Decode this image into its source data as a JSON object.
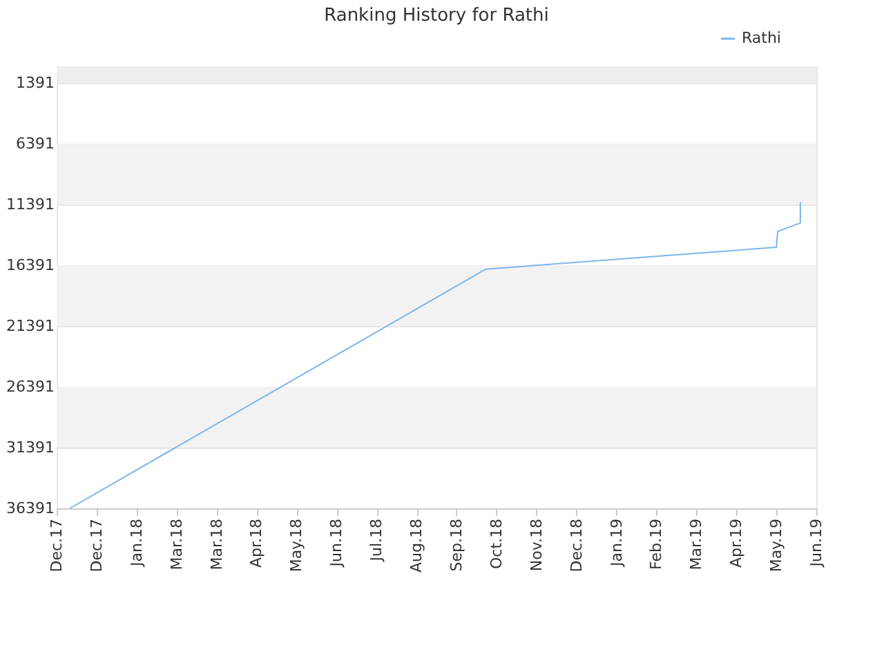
{
  "chart_data": {
    "type": "line",
    "title": "Ranking History for Rathi",
    "x": [
      "2017-12-11",
      "2018-10-19",
      "2019-05-25",
      "2019-05-26",
      "2019-06-12",
      "2019-06-12"
    ],
    "series": [
      {
        "name": "Rathi",
        "color": "#7cb5ec",
        "values": [
          36391,
          16700,
          14900,
          13600,
          12900,
          11200
        ]
      }
    ],
    "xlim": [
      "2017-12-01",
      "2019-06-24"
    ],
    "xticks": [
      {
        "value": "2017-12-01",
        "label": "Dec.17"
      },
      {
        "value": "2017-12-31",
        "label": "Dec.17"
      },
      {
        "value": "2018-01-30",
        "label": "Jan.18"
      },
      {
        "value": "2018-03-01",
        "label": "Mar.18"
      },
      {
        "value": "2018-03-31",
        "label": "Mar.18"
      },
      {
        "value": "2018-04-30",
        "label": "Apr.18"
      },
      {
        "value": "2018-05-30",
        "label": "May.18"
      },
      {
        "value": "2018-06-29",
        "label": "Jun.18"
      },
      {
        "value": "2018-07-29",
        "label": "Jul.18"
      },
      {
        "value": "2018-08-28",
        "label": "Aug.18"
      },
      {
        "value": "2018-09-27",
        "label": "Sep.18"
      },
      {
        "value": "2018-10-27",
        "label": "Oct.18"
      },
      {
        "value": "2018-11-26",
        "label": "Nov.18"
      },
      {
        "value": "2018-12-26",
        "label": "Dec.18"
      },
      {
        "value": "2019-01-25",
        "label": "Jan.19"
      },
      {
        "value": "2019-02-24",
        "label": "Feb.19"
      },
      {
        "value": "2019-03-26",
        "label": "Mar.19"
      },
      {
        "value": "2019-04-25",
        "label": "Apr.19"
      },
      {
        "value": "2019-05-25",
        "label": "May.19"
      },
      {
        "value": "2019-06-24",
        "label": "Jun.19"
      }
    ],
    "ylim": [
      36391,
      1
    ],
    "yticks": [
      1391,
      6391,
      11391,
      16391,
      21391,
      26391,
      31391,
      36391
    ],
    "bands": [
      {
        "axis": "y",
        "from": 1,
        "to": 1391,
        "color": "#eeeeee"
      },
      {
        "axis": "y",
        "from": 6391,
        "to": 11391,
        "color": "#f2f2f2"
      },
      {
        "axis": "y",
        "from": 16391,
        "to": 21391,
        "color": "#f2f2f2"
      },
      {
        "axis": "y",
        "from": 26391,
        "to": 31391,
        "color": "#f2f2f2"
      }
    ],
    "grid": "y",
    "legend": "top right",
    "marker": "none",
    "line_style": "solid"
  }
}
